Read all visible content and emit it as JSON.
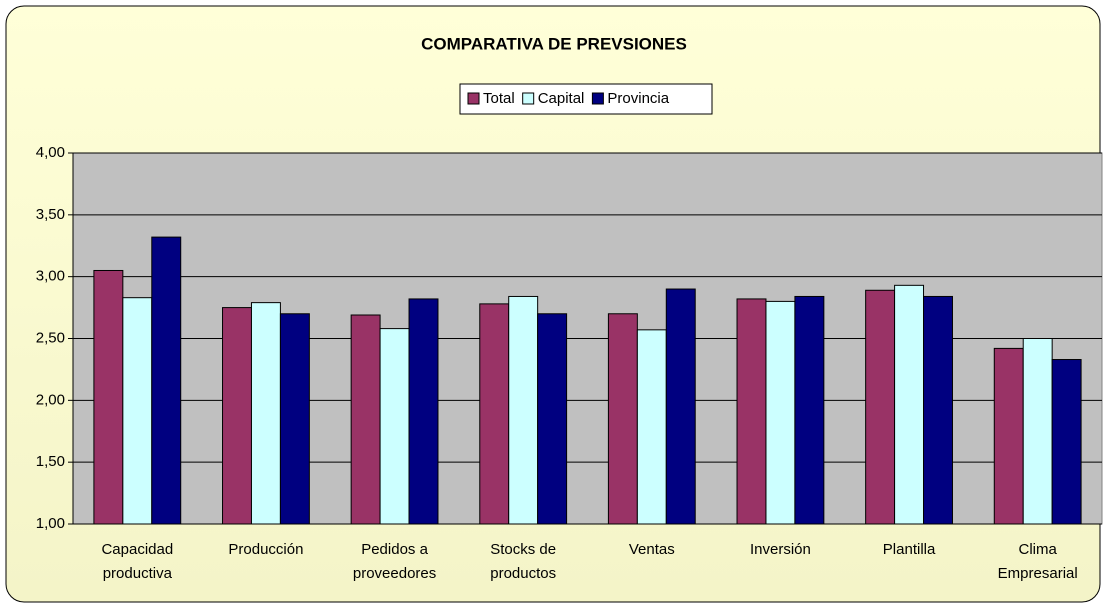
{
  "chart_data": {
    "type": "bar",
    "title": "COMPARATIVA DE PREVSIONES",
    "categories": [
      "Capacidad\nproductiva",
      "Producción",
      "Pedidos a\nproveedores",
      "Stocks de\nproductos",
      "Ventas",
      "Inversión",
      "Plantilla",
      "Clima\nEmpresarial"
    ],
    "series": [
      {
        "name": "Total",
        "color": "#993366",
        "values": [
          3.05,
          2.75,
          2.69,
          2.78,
          2.7,
          2.82,
          2.89,
          2.42
        ]
      },
      {
        "name": "Capital",
        "color": "#ccffff",
        "values": [
          2.83,
          2.79,
          2.58,
          2.84,
          2.57,
          2.8,
          2.93,
          2.5
        ]
      },
      {
        "name": "Provincia",
        "color": "#000080",
        "values": [
          3.32,
          2.7,
          2.82,
          2.7,
          2.9,
          2.84,
          2.84,
          2.33
        ]
      }
    ],
    "ylim": [
      1,
      4
    ],
    "yticks": [
      {
        "value": 1,
        "label": "1,00"
      },
      {
        "value": 1.5,
        "label": "1,50"
      },
      {
        "value": 2,
        "label": "2,00"
      },
      {
        "value": 2.5,
        "label": "2,50"
      },
      {
        "value": 3,
        "label": "3,00"
      },
      {
        "value": 3.5,
        "label": "3,50"
      },
      {
        "value": 4,
        "label": "4,00"
      }
    ],
    "grid": true,
    "legend": "top"
  }
}
